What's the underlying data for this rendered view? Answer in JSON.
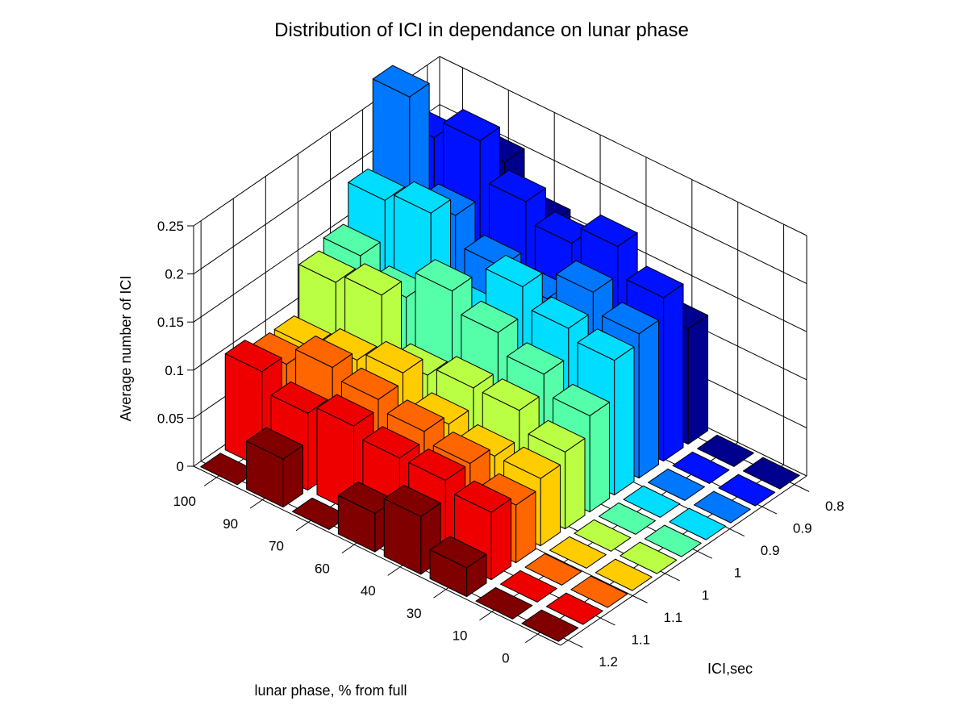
{
  "chart_data": {
    "type": "bar3d",
    "title": "Distribution of ICI in dependance on lunar phase",
    "xlabel": "lunar phase, % from full",
    "ylabel": "ICI,sec",
    "zlabel": "Average number of ICI",
    "zlim": [
      0,
      0.25
    ],
    "zticks": [
      "0",
      "0.05",
      "0.1",
      "0.15",
      "0.2",
      "0.25"
    ],
    "x_ticklabels": [
      "100",
      "90",
      "70",
      "60",
      "40",
      "30",
      "10",
      "0"
    ],
    "y_ticklabels": [
      "1.2",
      "1.1",
      "1.1",
      "1",
      "1",
      "0.9",
      "0.9",
      "0.8"
    ],
    "grid": true,
    "series_colors": [
      "#800000",
      "#ee0000",
      "#ff6600",
      "#ffcc00",
      "#bbff44",
      "#55ffaa",
      "#00ddff",
      "#0077ff",
      "#0011ff",
      "#00008f"
    ],
    "values": [
      [
        0.0,
        0.1,
        0.09,
        0.09,
        0.14,
        0.15,
        0.19,
        0.28,
        0.22,
        0.18
      ],
      [
        0.05,
        0.08,
        0.11,
        0.1,
        0.15,
        0.13,
        0.2,
        0.18,
        0.24,
        0.2
      ],
      [
        0.0,
        0.09,
        0.1,
        0.11,
        0.09,
        0.16,
        0.12,
        0.15,
        0.2,
        0.16
      ],
      [
        0.04,
        0.08,
        0.09,
        0.08,
        0.1,
        0.14,
        0.17,
        0.14,
        0.18,
        0.15
      ],
      [
        0.06,
        0.08,
        0.08,
        0.07,
        0.1,
        0.12,
        0.15,
        0.17,
        0.2,
        0.13
      ],
      [
        0.03,
        0.07,
        0.06,
        0.07,
        0.08,
        0.1,
        0.14,
        0.15,
        0.17,
        0.12
      ],
      [
        0.0,
        0.0,
        0.0,
        0.0,
        0.0,
        0.0,
        0.0,
        0.0,
        0.0,
        0.0
      ],
      [
        0.0,
        0.0,
        0.0,
        0.0,
        0.0,
        0.0,
        0.0,
        0.0,
        0.0,
        0.0
      ]
    ]
  }
}
